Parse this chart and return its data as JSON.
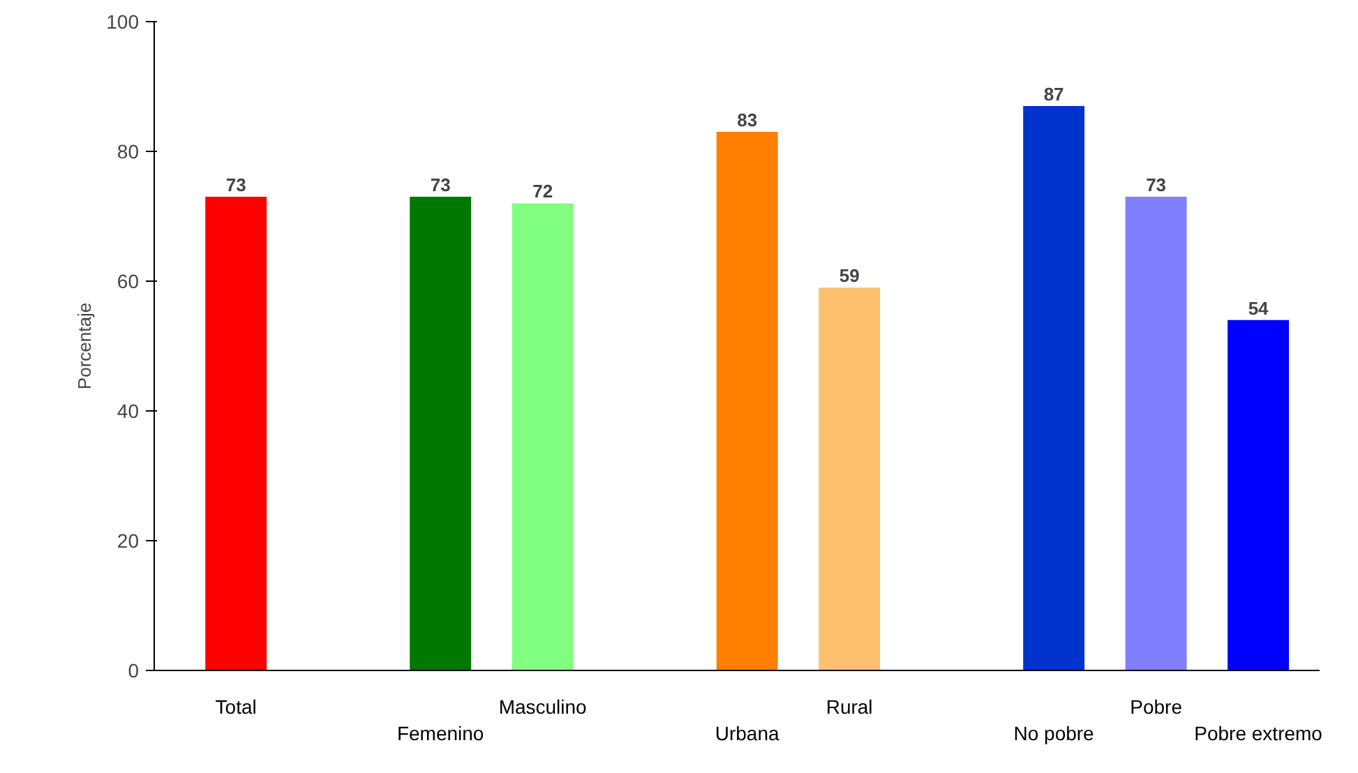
{
  "chart_data": {
    "type": "bar",
    "ylabel": "Porcentaje",
    "categories": [
      "Total",
      null,
      "Femenino",
      "Masculino",
      null,
      "Urbana",
      "Rural",
      null,
      "No pobre",
      "Pobre",
      "Pobre extremo"
    ],
    "values": [
      73,
      null,
      73,
      72,
      null,
      83,
      59,
      null,
      87,
      73,
      54
    ],
    "colors": [
      "#ff0000",
      "#ffffff",
      "#007700",
      "#80ff80",
      "#ffffff",
      "#ff8000",
      "#ffc070",
      "#ffffff",
      "#0033cc",
      "#8080ff",
      "#0000ff"
    ],
    "ylim": [
      0,
      100
    ],
    "yticks": [
      0,
      20,
      40,
      60,
      80,
      100
    ],
    "data_labels": true,
    "grid": false
  }
}
